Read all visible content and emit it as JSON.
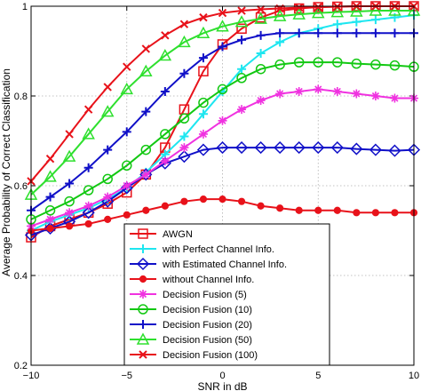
{
  "chart_data": {
    "type": "line",
    "title": "",
    "xlabel": "SNR in dB",
    "ylabel": "Average Probability of Correct Classification",
    "xlim": [
      -10,
      10
    ],
    "ylim": [
      0.2,
      1
    ],
    "xticks": [
      -10,
      -5,
      0,
      5,
      10
    ],
    "xtick_labels": [
      "−10",
      "−5",
      "0",
      "5",
      "10"
    ],
    "yticks": [
      0.2,
      0.4,
      0.6,
      0.8,
      1
    ],
    "ytick_labels": [
      "0.2",
      "0.4",
      "0.6",
      "0.8",
      "1"
    ],
    "grid": true,
    "legend_position": "bottom-center",
    "x": [
      -10,
      -9,
      -8,
      -7,
      -6,
      -5,
      -4,
      -3,
      -2,
      -1,
      0,
      1,
      2,
      3,
      4,
      5,
      6,
      7,
      8,
      9,
      10
    ],
    "series": [
      {
        "name": "AWGN",
        "color": "#e8121a",
        "marker": "square",
        "values": [
          0.485,
          0.51,
          0.525,
          0.54,
          0.56,
          0.585,
          0.625,
          0.685,
          0.77,
          0.855,
          0.915,
          0.95,
          0.975,
          0.99,
          0.995,
          0.998,
          0.999,
          1,
          1,
          1,
          1
        ]
      },
      {
        "name": "with Perfect Channel Info.",
        "color": "#1ee6f0",
        "marker": "plus",
        "values": [
          0.5,
          0.52,
          0.535,
          0.55,
          0.57,
          0.595,
          0.63,
          0.67,
          0.71,
          0.76,
          0.81,
          0.86,
          0.895,
          0.92,
          0.94,
          0.95,
          0.96,
          0.965,
          0.97,
          0.975,
          0.98
        ]
      },
      {
        "name": "with Estimated Channel Info.",
        "color": "#1010c8",
        "marker": "diamond",
        "values": [
          0.49,
          0.505,
          0.52,
          0.54,
          0.565,
          0.595,
          0.625,
          0.65,
          0.665,
          0.68,
          0.685,
          0.685,
          0.685,
          0.685,
          0.685,
          0.685,
          0.685,
          0.682,
          0.68,
          0.678,
          0.68
        ]
      },
      {
        "name": "without Channel Info.",
        "color": "#e8121a",
        "marker": "dot",
        "values": [
          0.5,
          0.505,
          0.51,
          0.515,
          0.525,
          0.535,
          0.545,
          0.555,
          0.565,
          0.57,
          0.57,
          0.565,
          0.555,
          0.55,
          0.545,
          0.545,
          0.545,
          0.54,
          0.54,
          0.54,
          0.54
        ]
      },
      {
        "name": "Decision Fusion (5)",
        "color": "#f032e0",
        "marker": "asterisk",
        "values": [
          0.51,
          0.525,
          0.54,
          0.555,
          0.575,
          0.6,
          0.625,
          0.655,
          0.685,
          0.715,
          0.745,
          0.77,
          0.79,
          0.805,
          0.81,
          0.815,
          0.81,
          0.805,
          0.8,
          0.795,
          0.795
        ]
      },
      {
        "name": "Decision Fusion (10)",
        "color": "#12c812",
        "marker": "circle",
        "values": [
          0.525,
          0.545,
          0.565,
          0.59,
          0.615,
          0.645,
          0.68,
          0.715,
          0.75,
          0.785,
          0.815,
          0.84,
          0.86,
          0.87,
          0.875,
          0.875,
          0.875,
          0.872,
          0.87,
          0.868,
          0.865
        ]
      },
      {
        "name": "Decision Fusion (20)",
        "color": "#1010c8",
        "marker": "plus",
        "values": [
          0.545,
          0.575,
          0.605,
          0.64,
          0.68,
          0.72,
          0.765,
          0.81,
          0.85,
          0.885,
          0.91,
          0.925,
          0.935,
          0.94,
          0.94,
          0.94,
          0.94,
          0.94,
          0.94,
          0.94,
          0.94
        ]
      },
      {
        "name": "Decision Fusion (50)",
        "color": "#2ee02e",
        "marker": "triangle",
        "values": [
          0.58,
          0.62,
          0.665,
          0.715,
          0.765,
          0.815,
          0.855,
          0.89,
          0.92,
          0.94,
          0.955,
          0.965,
          0.972,
          0.978,
          0.982,
          0.985,
          0.987,
          0.988,
          0.99,
          0.99,
          0.99
        ]
      },
      {
        "name": "Decision Fusion (100)",
        "color": "#e8121a",
        "marker": "x",
        "values": [
          0.61,
          0.66,
          0.715,
          0.77,
          0.82,
          0.865,
          0.905,
          0.935,
          0.96,
          0.975,
          0.985,
          0.99,
          0.993,
          0.995,
          0.997,
          0.998,
          0.999,
          1,
          1,
          1,
          1
        ]
      }
    ]
  }
}
